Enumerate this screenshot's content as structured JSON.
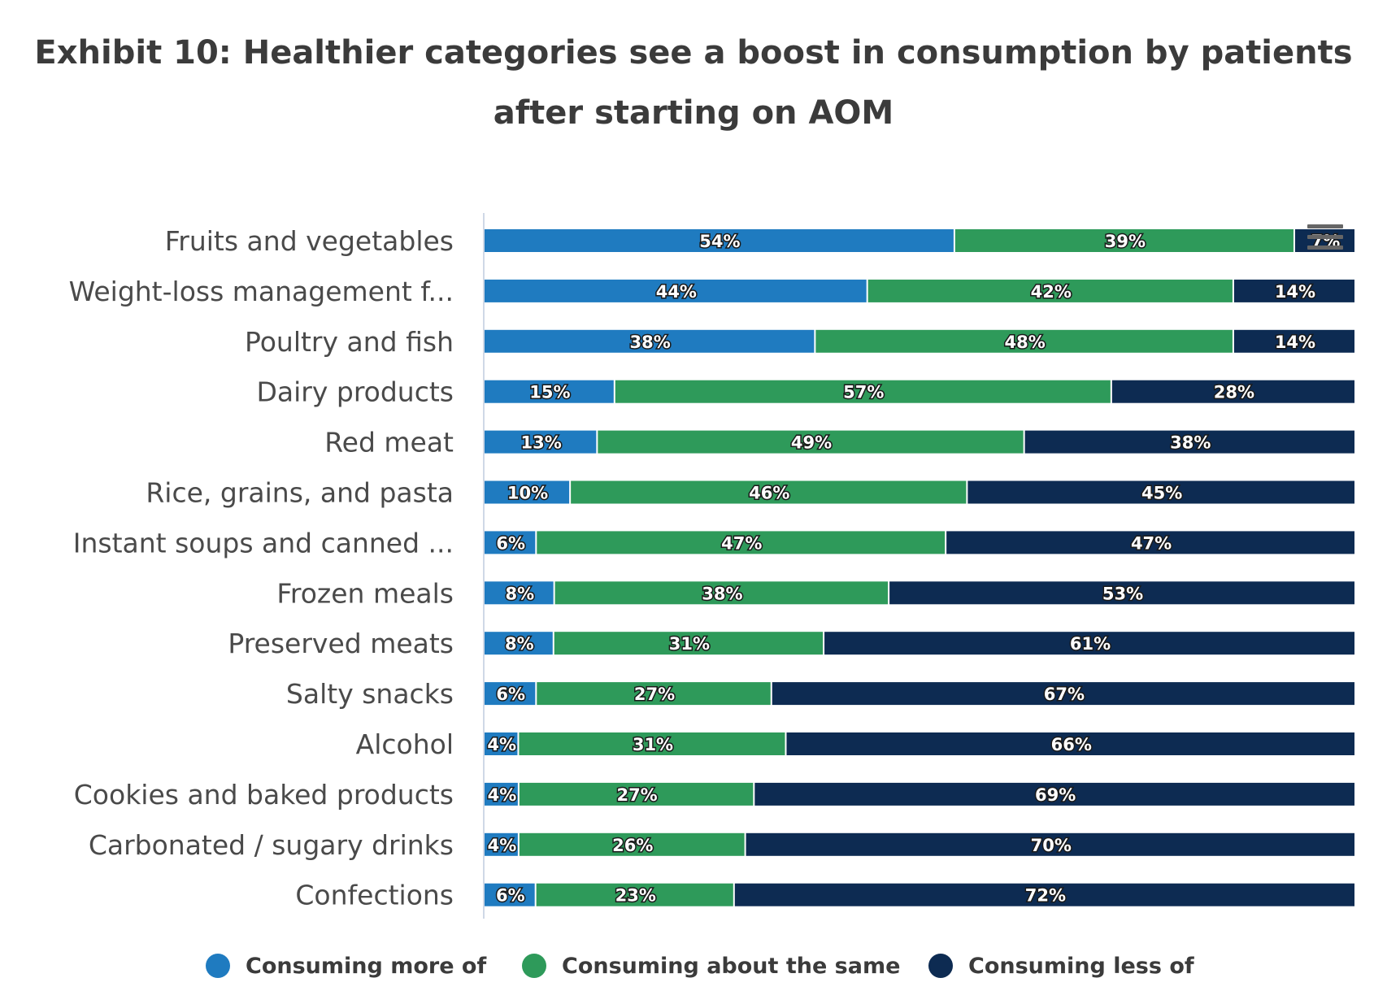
{
  "chart_data": {
    "type": "bar",
    "orientation": "horizontal",
    "stacked": true,
    "normalized": true,
    "title": "Exhibit 10: Healthier categories see a boost in consumption by patients after starting on AOM",
    "categories": [
      "Fruits and vegetables",
      "Weight-loss management f...",
      "Poultry and fish",
      "Dairy products",
      "Red meat",
      "Rice, grains, and pasta",
      "Instant soups and canned ...",
      "Frozen meals",
      "Preserved meats",
      "Salty snacks",
      "Alcohol",
      "Cookies and baked products",
      "Carbonated / sugary drinks",
      "Confections"
    ],
    "series": [
      {
        "name": "Consuming more of",
        "color": "#1f7bc0",
        "values": [
          54,
          44,
          38,
          15,
          13,
          10,
          6,
          8,
          8,
          6,
          4,
          4,
          4,
          6
        ]
      },
      {
        "name": "Consuming about the same",
        "color": "#2e9a5a",
        "values": [
          39,
          42,
          48,
          57,
          49,
          46,
          47,
          38,
          31,
          27,
          31,
          27,
          26,
          23
        ]
      },
      {
        "name": "Consuming less of",
        "color": "#0d2b52",
        "values": [
          7,
          14,
          14,
          28,
          38,
          45,
          47,
          53,
          61,
          67,
          66,
          69,
          70,
          72
        ]
      }
    ],
    "value_suffix": "%",
    "legend_position": "bottom",
    "xlabel": "",
    "ylabel": "",
    "grid": false
  },
  "icons": {
    "menu": "hamburger-menu-icon"
  }
}
